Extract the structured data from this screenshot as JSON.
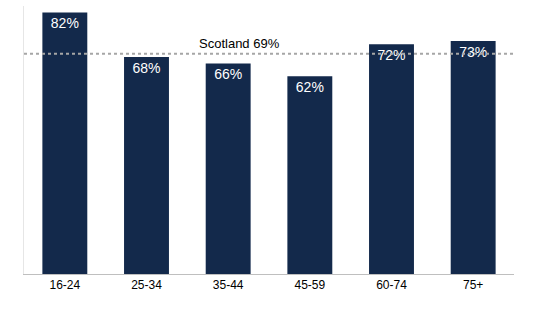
{
  "chart_data": {
    "type": "bar",
    "categories": [
      "16-24",
      "25-34",
      "35-44",
      "45-59",
      "60-74",
      "75+"
    ],
    "values": [
      82,
      68,
      66,
      62,
      72,
      73
    ],
    "value_labels": [
      "82%",
      "68%",
      "66%",
      "62%",
      "72%",
      "73%"
    ],
    "color": "#13294b",
    "ylim": [
      0,
      84
    ],
    "grid": false,
    "data_labels": true,
    "tick_labels": "x",
    "annotations": [
      {
        "text": "Scotland 69%",
        "y": 69,
        "line_style": "dotted",
        "color": "#a6a6a6"
      }
    ]
  }
}
